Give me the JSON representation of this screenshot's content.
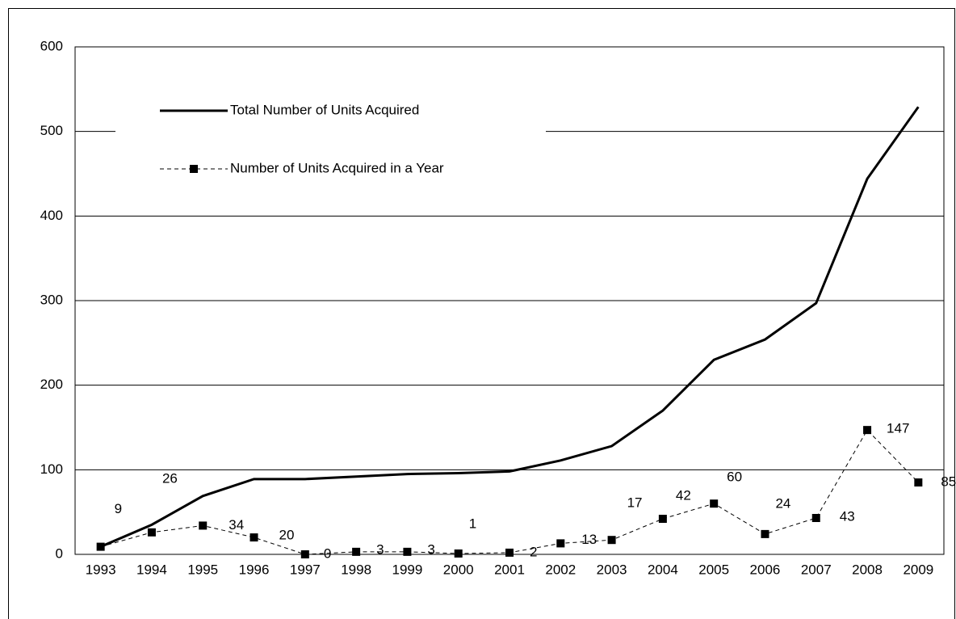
{
  "chart_data": {
    "type": "line",
    "categories": [
      "1993",
      "1994",
      "1995",
      "1996",
      "1997",
      "1998",
      "1999",
      "2000",
      "2001",
      "2002",
      "2003",
      "2004",
      "2005",
      "2006",
      "2007",
      "2008",
      "2009"
    ],
    "series": [
      {
        "name": "Total Number of Units Acquired",
        "color": "#000000",
        "style": "solid",
        "values": [
          9,
          35,
          69,
          89,
          89,
          92,
          95,
          96,
          98,
          111,
          128,
          170,
          230,
          254,
          297,
          444,
          529
        ]
      },
      {
        "name": "Number of Units Acquired in a Year",
        "color": "#000000",
        "style": "dashed",
        "values": [
          9,
          26,
          34,
          20,
          0,
          3,
          3,
          1,
          2,
          13,
          17,
          42,
          60,
          24,
          43,
          147,
          85
        ]
      }
    ],
    "ylim": [
      0,
      600
    ],
    "yticks": [
      0,
      100,
      200,
      300,
      400,
      500,
      600
    ],
    "grid": true,
    "legend": "upper left",
    "data_labels": [
      false,
      true
    ]
  }
}
